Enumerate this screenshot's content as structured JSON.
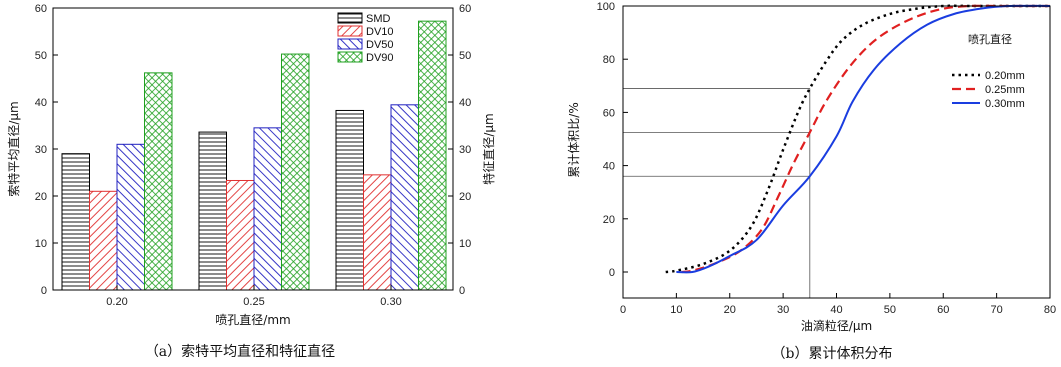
{
  "chart_data": [
    {
      "type": "bar",
      "caption": "（a）索特平均直径和特征直径",
      "xlabel": "喷孔直径/mm",
      "ylabel": "索特平均直径/μm",
      "ylabel_right": "特征直径/μm",
      "categories": [
        "0.20",
        "0.25",
        "0.30"
      ],
      "ylim": [
        0,
        60
      ],
      "yticks": [
        0,
        10,
        20,
        30,
        40,
        50,
        60
      ],
      "legend_position": "top-right",
      "series": [
        {
          "name": "SMD",
          "values": [
            29.0,
            33.6,
            38.2
          ],
          "color": "#000000",
          "pattern": "horizontal"
        },
        {
          "name": "DV10",
          "values": [
            21.0,
            23.3,
            24.5
          ],
          "color": "#e03030",
          "pattern": "diag-right"
        },
        {
          "name": "DV50",
          "values": [
            31.0,
            34.5,
            39.4
          ],
          "color": "#2020c0",
          "pattern": "diag-left"
        },
        {
          "name": "DV90",
          "values": [
            46.2,
            50.2,
            57.2
          ],
          "color": "#20a020",
          "pattern": "cross"
        }
      ]
    },
    {
      "type": "line",
      "caption": "（b）累计体积分布",
      "xlabel": "油滴粒径/μm",
      "ylabel": "累计体积比/%",
      "xlim": [
        0,
        80
      ],
      "ylim": [
        0,
        100
      ],
      "xticks": [
        0,
        10,
        20,
        30,
        40,
        50,
        60,
        70,
        80
      ],
      "yticks": [
        0,
        20,
        40,
        60,
        80,
        100
      ],
      "legend_title": "喷孔直径",
      "legend_position": "right",
      "reference_x": 35,
      "reference_y": [
        69,
        52.5,
        36
      ],
      "series": [
        {
          "name": "0.20mm",
          "color": "#000000",
          "dash": "dotted",
          "x": [
            8,
            10,
            15,
            20,
            24,
            27,
            30,
            33,
            35,
            38,
            41,
            45,
            50,
            55,
            60,
            65,
            70,
            80
          ],
          "y": [
            0,
            0.5,
            3,
            8,
            17,
            30,
            46,
            61,
            69,
            79,
            87,
            93,
            97,
            99,
            100,
            100,
            100,
            100
          ]
        },
        {
          "name": "0.25mm",
          "color": "#e02020",
          "dash": "dashed",
          "x": [
            11,
            13,
            17,
            22,
            26,
            29,
            32,
            35,
            38,
            42,
            46,
            50,
            55,
            60,
            65,
            70,
            80
          ],
          "y": [
            0,
            0.5,
            3,
            8,
            16,
            28,
            41,
            52.5,
            64,
            76,
            85,
            91,
            96,
            99,
            100,
            100,
            100
          ]
        },
        {
          "name": "0.30mm",
          "color": "#1a3de0",
          "dash": "solid",
          "x": [
            10,
            13,
            16,
            20,
            25,
            30,
            35,
            40,
            43,
            47,
            52,
            57,
            62,
            67,
            72,
            80
          ],
          "y": [
            0,
            0,
            2,
            6,
            12,
            25,
            36,
            51,
            64,
            76,
            86,
            93,
            97,
            99,
            100,
            100
          ]
        }
      ]
    }
  ]
}
